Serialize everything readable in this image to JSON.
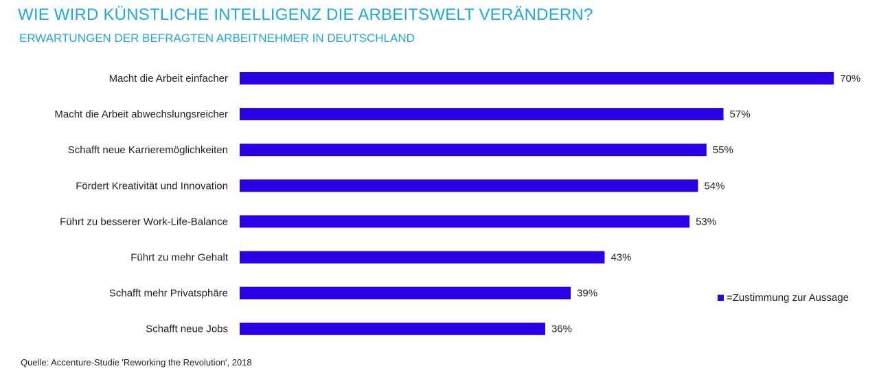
{
  "title": "WIE WIRD KÜNSTLICHE INTELLIGENZ DIE ARBEITSWELT VERÄNDERN?",
  "subtitle": "ERWARTUNGEN DER BEFRAGTEN ARBEITNEHMER IN DEUTSCHLAND",
  "source": "Quelle: Accenture-Studie 'Reworking the Revolution', 2018",
  "colors": {
    "bar": "#2a00e6",
    "title": "#1fa7dc",
    "text": "#222222"
  },
  "chart_data": {
    "type": "bar",
    "orientation": "horizontal",
    "categories": [
      "Macht die Arbeit einfacher",
      "Macht die Arbeit abwechslungsreicher",
      "Schafft neue Karrieremöglichkeiten",
      "Fördert Kreativität und Innovation",
      "Führt zu besserer Work-Life-Balance",
      "Führt zu mehr Gehalt",
      "Schafft mehr Privatsphäre",
      "Schafft neue Jobs"
    ],
    "series": [
      {
        "name": "=Zustimmung zur Aussage",
        "values": [
          70,
          57,
          55,
          54,
          53,
          43,
          39,
          36
        ]
      }
    ],
    "value_labels": [
      "70%",
      "57%",
      "55%",
      "54%",
      "53%",
      "43%",
      "39%",
      "36%"
    ],
    "xlim": [
      0,
      70
    ],
    "grid": false,
    "legend_position": "right"
  }
}
